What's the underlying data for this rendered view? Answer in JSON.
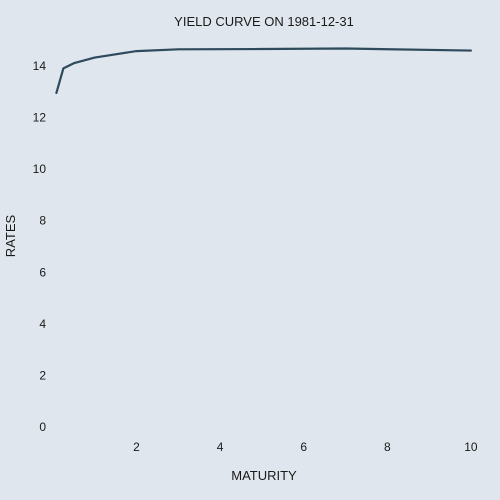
{
  "chart_data": {
    "type": "line",
    "title": "YIELD CURVE ON 1981-12-31",
    "xlabel": "MATURITY",
    "ylabel": "RATES",
    "x": [
      0.08333,
      0.25,
      0.5,
      1,
      2,
      3,
      5,
      7,
      10
    ],
    "series": [
      {
        "values": [
          12.95,
          13.9,
          14.1,
          14.32,
          14.57,
          14.64,
          14.65,
          14.67,
          14.59
        ]
      }
    ],
    "xlim": [
      0.05,
      10.05
    ],
    "ylim": [
      -0.5,
      15
    ],
    "xticks": [
      2,
      4,
      6,
      8,
      10
    ],
    "yticks": [
      0,
      2,
      4,
      6,
      8,
      10,
      12,
      14
    ],
    "grid": false,
    "line_color": "#2e4a5c"
  }
}
